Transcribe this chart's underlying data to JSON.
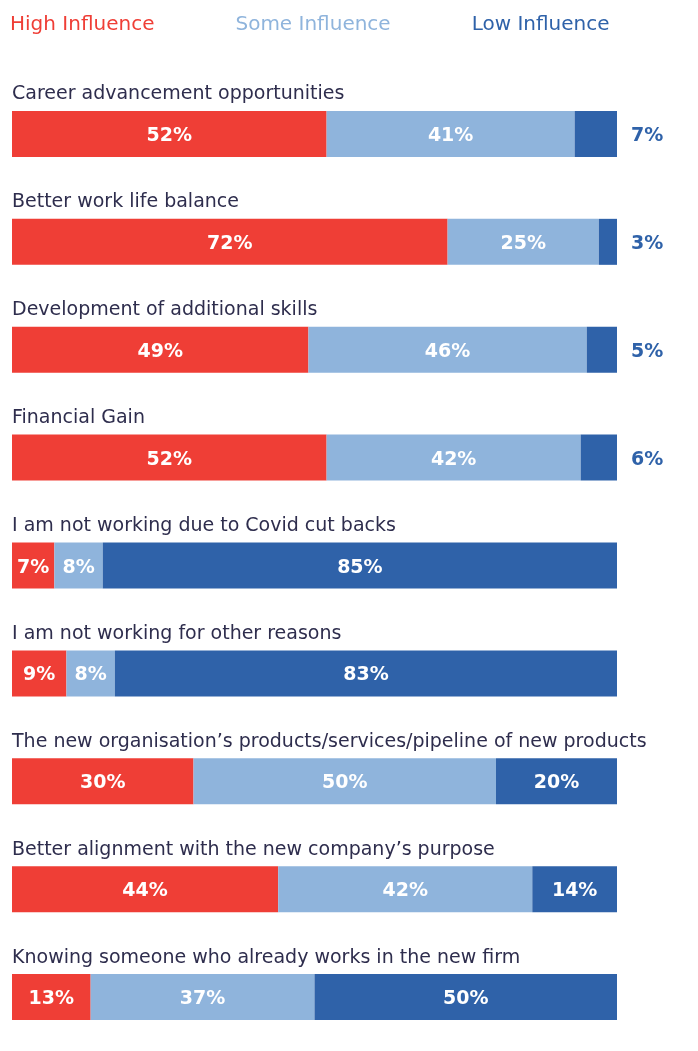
{
  "chart_data": {
    "type": "bar",
    "orientation": "horizontal",
    "stacked": true,
    "legend": "top left",
    "grid": false,
    "categories": [
      "Career advancement opportunities",
      "Better work life balance",
      "Development of additional skills",
      "Financial Gain",
      "I am not working due to Covid cut backs",
      "I am not working for other reasons",
      "The new organisation’s products/services/pipeline of new products",
      "Better alignment with the new company’s purpose",
      "Knowing someone who already works in the new firm"
    ],
    "series": [
      {
        "name": "High Influence",
        "color": "#ef3e36",
        "values": [
          52,
          72,
          49,
          52,
          7,
          9,
          30,
          44,
          13
        ],
        "value_labels": [
          "52%",
          "72%",
          "49%",
          "52%",
          "7%",
          "9%",
          "30%",
          "44%",
          "13%"
        ]
      },
      {
        "name": "Some Influence",
        "color": "#8fb4dc",
        "values": [
          41,
          25,
          46,
          42,
          8,
          8,
          50,
          42,
          37
        ],
        "value_labels": [
          "41%",
          "25%",
          "46%",
          "42%",
          "8%",
          "8%",
          "50%",
          "42%",
          "37%"
        ]
      },
      {
        "name": "Low Influence",
        "color": "#2f62a9",
        "values": [
          7,
          3,
          5,
          6,
          85,
          83,
          20,
          14,
          50
        ],
        "value_labels": [
          "7%",
          "3%",
          "5%",
          "6%",
          "85%",
          "83%",
          "20%",
          "14%",
          "50%"
        ]
      }
    ]
  }
}
